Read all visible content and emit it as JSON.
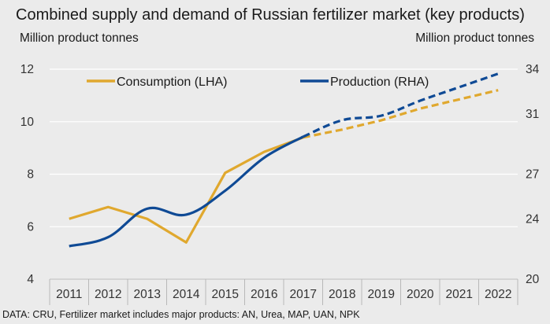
{
  "title": "Combined supply and demand of Russian fertilizer market (key products)",
  "left_unit": "Million product tonnes",
  "right_unit": "Million product tonnes",
  "source": "DATA: CRU, Fertilizer market includes major products: AN, Urea, MAP, UAN, NPK",
  "colors": {
    "consumption": "#e0a82e",
    "production": "#0f4a95",
    "grid": "#ffffff",
    "axis": "#b8b8b8"
  },
  "chart_data": {
    "type": "line",
    "categories": [
      "2011",
      "2012",
      "2013",
      "2014",
      "2015",
      "2016",
      "2017",
      "2018",
      "2019",
      "2020",
      "2021",
      "2022"
    ],
    "forecast_from": "2017",
    "y_left": {
      "label": "Million product tonnes",
      "ylim": [
        4,
        12
      ],
      "ticks": [
        4,
        6,
        8,
        10,
        12
      ]
    },
    "y_right": {
      "label": "Million product tonnes",
      "ylim": [
        20,
        34
      ],
      "ticks": [
        20,
        24,
        27,
        31,
        34
      ]
    },
    "grid": "horizontal",
    "legend_position": "top",
    "series": [
      {
        "name": "Consumption (LHA)",
        "axis": "left",
        "color": "#e0a82e",
        "values": [
          6.3,
          6.75,
          6.3,
          5.4,
          8.05,
          8.85,
          9.4,
          9.7,
          10.05,
          10.5,
          10.85,
          11.2
        ]
      },
      {
        "name": "Production (RHA)",
        "axis": "right",
        "color": "#0f4a95",
        "values": [
          22.2,
          22.8,
          24.7,
          24.3,
          25.9,
          28.1,
          29.5,
          30.6,
          30.9,
          31.9,
          32.8,
          33.7
        ]
      }
    ]
  }
}
